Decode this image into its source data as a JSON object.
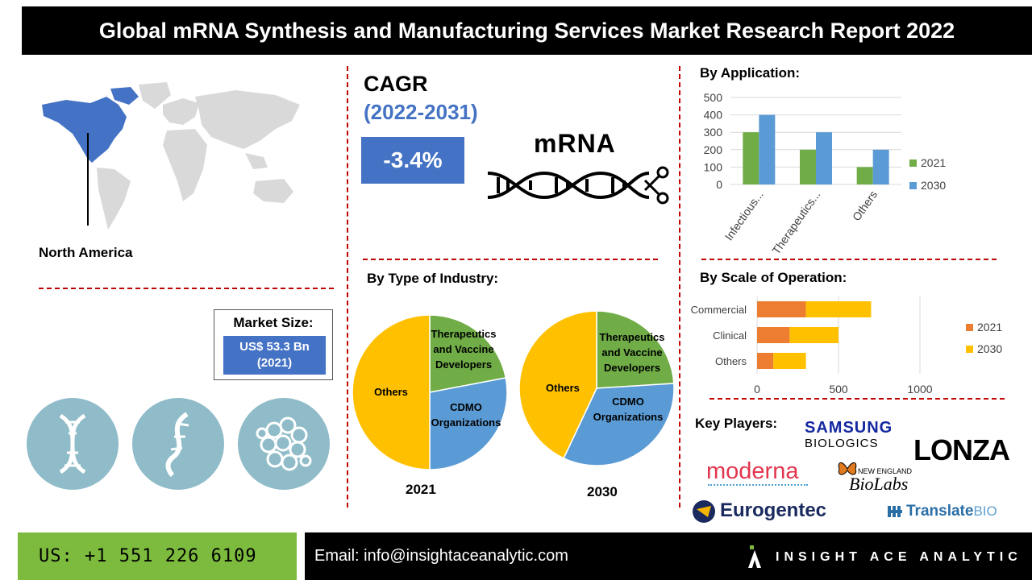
{
  "header": {
    "title": "Global mRNA Synthesis and Manufacturing Services Market Research Report 2022"
  },
  "region": {
    "label": "North America"
  },
  "cagr": {
    "title": "CAGR",
    "period": "(2022-2031)",
    "value": "-3.4%"
  },
  "mrna_graphic": {
    "label": "mRNA"
  },
  "market_size": {
    "title": "Market Size:",
    "value_line1": "US$ 53.3 Bn",
    "value_line2": "(2021)"
  },
  "icons": [
    "dna-helix-icon",
    "rna-strand-icon",
    "protein-molecule-icon"
  ],
  "industry": {
    "title": "By Type of Industry:",
    "labels": {
      "others": "Others",
      "therapeutics_line1": "Therapeutics",
      "therapeutics_line2": "and Vaccine",
      "therapeutics_line3": "Developers",
      "cdmo_line1": "CDMO",
      "cdmo_line2": "Organizations"
    }
  },
  "application": {
    "title": "By Application:"
  },
  "scale": {
    "title": "By Scale of Operation:"
  },
  "key_players": {
    "title": "Key Players:",
    "samsung_line1": "SAMSUNG",
    "samsung_line2": "BIOLOGICS",
    "lonza": "LONZA",
    "moderna": "moderna",
    "neb_line1": "NEW ENGLAND",
    "neb_line2": "BioLabs",
    "eurogentec": "Eurogentec",
    "translate_main": "Translate",
    "translate_suffix": "BIO"
  },
  "footer": {
    "phone": "US: +1 551 226 6109",
    "email": "Email: info@insightaceanalytic.com",
    "brand": "INSIGHT ACE ANALYTIC"
  },
  "colors": {
    "blue": "#4472c4",
    "green": "#70ad47",
    "orange": "#ed7d31",
    "yellow": "#ffc000",
    "pie_blue": "#5b9bd5",
    "red": "#c00000"
  },
  "chart_data": [
    {
      "type": "pie",
      "title": "2021",
      "categories": [
        "Therapeutics and Vaccine Developers",
        "CDMO Organizations",
        "Others"
      ],
      "values": [
        22,
        28,
        50
      ]
    },
    {
      "type": "pie",
      "title": "2030",
      "categories": [
        "Therapeutics and Vaccine Developers",
        "CDMO Organizations",
        "Others"
      ],
      "values": [
        24,
        33,
        43
      ]
    },
    {
      "type": "bar",
      "categories": [
        "Infectious...",
        "Therapeutics...",
        "Others"
      ],
      "series": [
        {
          "name": "2021",
          "values": [
            300,
            200,
            100
          ]
        },
        {
          "name": "2030",
          "values": [
            400,
            300,
            200
          ]
        }
      ],
      "yticks": [
        "0",
        "100",
        "200",
        "300",
        "400",
        "500"
      ],
      "ylim": [
        0,
        500
      ],
      "grid": true,
      "legend": "right"
    },
    {
      "type": "bar",
      "orientation": "horizontal",
      "stacked": true,
      "categories": [
        "Commercial",
        "Clinical",
        "Others"
      ],
      "series": [
        {
          "name": "2021",
          "values": [
            300,
            200,
            100
          ]
        },
        {
          "name": "2030",
          "values": [
            400,
            300,
            200
          ]
        }
      ],
      "xticks": [
        "0",
        "500",
        "1000"
      ],
      "xlim": [
        0,
        1200
      ],
      "grid": true,
      "legend": "right"
    }
  ]
}
